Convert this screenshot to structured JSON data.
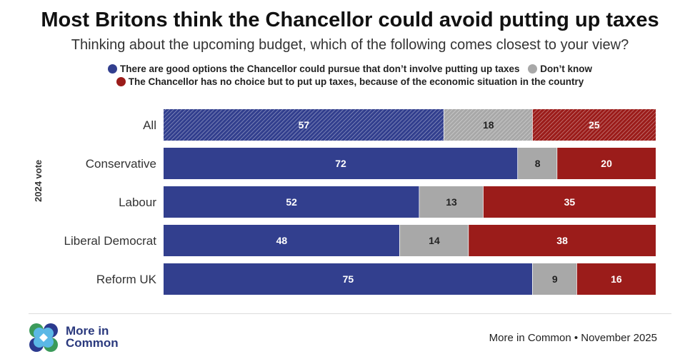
{
  "title": "Most Britons think the Chancellor could avoid putting up taxes",
  "subtitle": "Thinking about the upcoming budget, which of the following comes closest to your view?",
  "legend": [
    {
      "label": "There are good options the Chancellor could pursue that don’t involve putting up taxes",
      "color": "#323f8e"
    },
    {
      "label": "Don’t know",
      "color": "#a8a8a8"
    },
    {
      "label": "The Chancellor has no choice but to put up taxes, because of the economic situation in the country",
      "color": "#9b1c1a"
    }
  ],
  "chart_data": {
    "type": "bar",
    "orientation": "horizontal",
    "stacked": true,
    "ylabel": "2024 vote",
    "categories": [
      "All",
      "Conservative",
      "Labour",
      "Liberal Democrat",
      "Reform UK"
    ],
    "xlim": [
      0,
      100
    ],
    "hatched_categories": [
      "All"
    ],
    "series": [
      {
        "name": "There are good options the Chancellor could pursue that don’t involve putting up taxes",
        "color": "#323f8e",
        "values": [
          57,
          72,
          52,
          48,
          75
        ]
      },
      {
        "name": "Don’t know",
        "color": "#a8a8a8",
        "values": [
          18,
          8,
          13,
          14,
          9
        ]
      },
      {
        "name": "The Chancellor has no choice but to put up taxes, because of the economic situation in the country",
        "color": "#9b1c1a",
        "values": [
          25,
          20,
          35,
          38,
          16
        ]
      }
    ]
  },
  "logo": {
    "line1": "More in",
    "line2": "Common"
  },
  "source": "More in Common • November 2025"
}
